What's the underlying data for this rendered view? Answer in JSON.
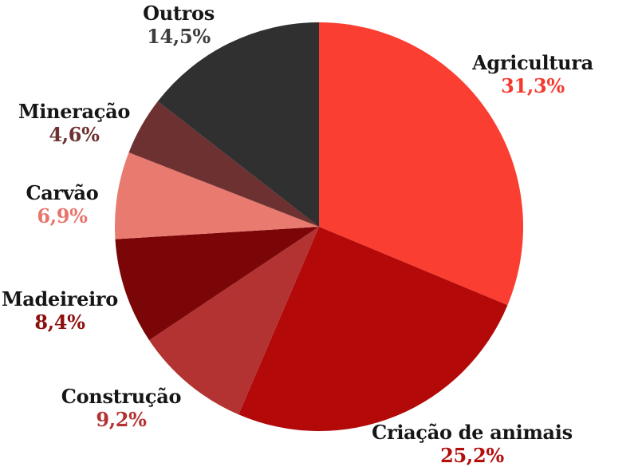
{
  "chart_data": {
    "type": "pie",
    "title": "",
    "legend_position": "none",
    "background": "#FFFFFF",
    "start_angle_deg": 0,
    "direction": "clockwise",
    "categories": [
      "Agricultura",
      "Criação de animais",
      "Construção",
      "Madeireiro",
      "Carvão",
      "Mineração",
      "Outros"
    ],
    "values": [
      31.3,
      25.2,
      9.2,
      8.4,
      6.9,
      4.6,
      14.5
    ],
    "value_labels": [
      "31,3%",
      "25,2%",
      "9,2%",
      "8,4%",
      "6,9%",
      "4,6%",
      "14,5%"
    ],
    "slice_colors": [
      "#FA3E31",
      "#B30909",
      "#B23331",
      "#7B0607",
      "#E97A70",
      "#6E3131",
      "#303030"
    ],
    "percent_label_colors": [
      "#F43A2E",
      "#B10E0C",
      "#B23331",
      "#8E100D",
      "#E8756C",
      "#6E3131",
      "#3D3D3D"
    ],
    "name_label_color": "#161616"
  }
}
